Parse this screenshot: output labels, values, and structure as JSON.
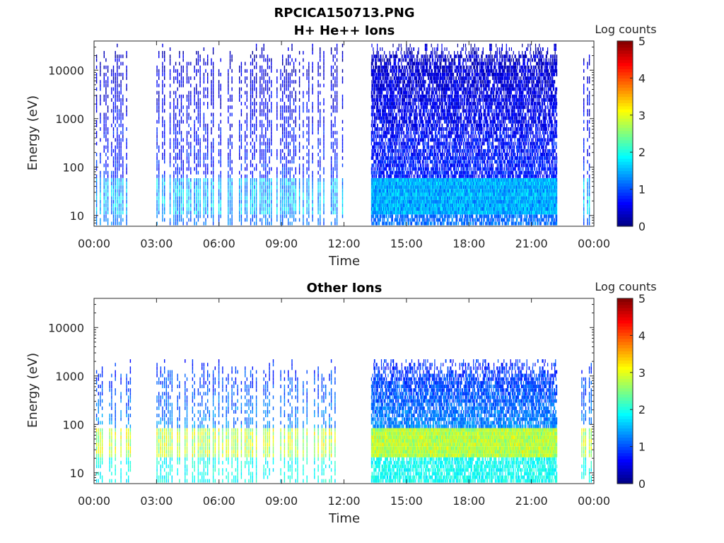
{
  "figure_title": "RPCICA150713.PNG",
  "colors": {
    "axis": "#262626",
    "colormap": [
      "#000080",
      "#0000ff",
      "#00ffff",
      "#ffff00",
      "#ff0000",
      "#800000"
    ]
  },
  "chart_data": [
    {
      "type": "heatmap",
      "title": "H+ He++ Ions",
      "xlabel": "Time",
      "ylabel": "Energy (eV)",
      "x_ticks": [
        "00:00",
        "03:00",
        "06:00",
        "09:00",
        "12:00",
        "15:00",
        "18:00",
        "21:00",
        "00:00"
      ],
      "xlim_hours": [
        0,
        24
      ],
      "y_ticks": [
        10,
        100,
        1000,
        10000
      ],
      "ylim": [
        6,
        40000
      ],
      "y_scale": "log",
      "colorbar": {
        "label": "Log counts",
        "ticks": [
          0,
          1,
          2,
          3,
          4,
          5
        ],
        "range": [
          0,
          5
        ],
        "colormap": "jet"
      },
      "data_intervals_hours": [
        [
          0.1,
          1.8
        ],
        [
          3.0,
          12.0
        ],
        [
          13.3,
          22.2
        ],
        [
          23.4,
          23.9
        ]
      ],
      "peak_energy_band_eV": [
        10,
        50
      ],
      "typical_log_counts": {
        "low_energy_band": 1.5,
        "high_energy": 0.5
      }
    },
    {
      "type": "heatmap",
      "title": "Other Ions",
      "xlabel": "Time",
      "ylabel": "Energy (eV)",
      "x_ticks": [
        "00:00",
        "03:00",
        "06:00",
        "09:00",
        "12:00",
        "15:00",
        "18:00",
        "21:00",
        "00:00"
      ],
      "xlim_hours": [
        0,
        24
      ],
      "y_ticks": [
        10,
        100,
        1000,
        10000
      ],
      "ylim": [
        6,
        40000
      ],
      "y_scale": "log",
      "colorbar": {
        "label": "Log counts",
        "ticks": [
          0,
          1,
          2,
          3,
          4,
          5
        ],
        "range": [
          0,
          5
        ],
        "colormap": "jet"
      },
      "data_intervals_hours": [
        [
          0.1,
          1.8
        ],
        [
          3.0,
          11.8
        ],
        [
          13.3,
          22.2
        ],
        [
          23.4,
          23.9
        ]
      ],
      "peak_energy_band_eV": [
        20,
        80
      ],
      "typical_log_counts": {
        "low_energy_band": 2.8,
        "high_energy": 1.0
      }
    }
  ]
}
